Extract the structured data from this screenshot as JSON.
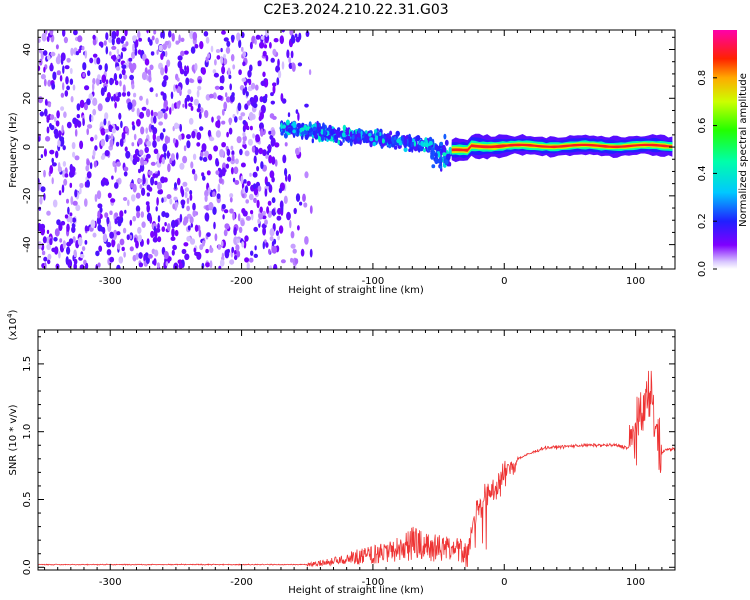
{
  "title": "C2E3.2024.210.22.31.G03",
  "chart_data": [
    {
      "type": "heatmap",
      "xlabel": "Height of straight line (km)",
      "ylabel": "Frequency (Hz)",
      "xlim": [
        -355,
        130
      ],
      "ylim": [
        -50,
        48
      ],
      "xticks": [
        -300,
        -200,
        -100,
        0,
        100
      ],
      "yticks": [
        -40,
        -20,
        0,
        20,
        40
      ],
      "grid": false,
      "colorbar": {
        "label": "Normalized spectral amplitude",
        "range": [
          0,
          1
        ],
        "ticks": [
          "0.0",
          "0.2",
          "0.4",
          "0.6",
          "0.8"
        ]
      },
      "regions": [
        {
          "x_range": [
            -355,
            -145
          ],
          "y_range": [
            -50,
            48
          ],
          "description_value": "scattered noise, amplitude 0.05-0.2"
        },
        {
          "x_range": [
            -170,
            -40
          ],
          "y_center": [
            8,
            0
          ],
          "y_spread": 12,
          "amplitude": [
            0.3,
            0.5
          ]
        },
        {
          "x_range": [
            -40,
            130
          ],
          "y_center": 0.5,
          "y_spread": 3,
          "amplitude": [
            0.8,
            1.0
          ]
        }
      ]
    },
    {
      "type": "line",
      "xlabel": "Height of straight line (km)",
      "ylabel": "SNR (10 * v/v)",
      "scale_label": "(x10",
      "scale_exp": "4",
      "scale_close": ")",
      "xlim": [
        -355,
        130
      ],
      "ylim": [
        -0.02,
        1.75
      ],
      "xticks": [
        -300,
        -200,
        -100,
        0,
        100
      ],
      "yticks": [
        "0.0",
        "0.5",
        "1.0",
        "1.5"
      ],
      "ytick_values": [
        0,
        0.5,
        1.0,
        1.5
      ],
      "grid": false,
      "series": [
        {
          "color": "#ee3333",
          "envelope": [
            [
              -355,
              0.02
            ],
            [
              -250,
              0.02
            ],
            [
              -180,
              0.02
            ],
            [
              -150,
              0.03
            ],
            [
              -130,
              0.06
            ],
            [
              -110,
              0.12
            ],
            [
              -90,
              0.15
            ],
            [
              -70,
              0.25
            ],
            [
              -50,
              0.2
            ],
            [
              -35,
              0.2
            ],
            [
              -28,
              0.12
            ],
            [
              -20,
              0.45
            ],
            [
              -10,
              0.55
            ],
            [
              0,
              0.68
            ],
            [
              10,
              0.8
            ],
            [
              30,
              0.88
            ],
            [
              60,
              0.9
            ],
            [
              85,
              0.9
            ],
            [
              95,
              0.88
            ],
            [
              105,
              1.1
            ],
            [
              112,
              1.3
            ],
            [
              118,
              0.85
            ],
            [
              125,
              0.87
            ],
            [
              130,
              0.87
            ]
          ]
        }
      ]
    }
  ]
}
